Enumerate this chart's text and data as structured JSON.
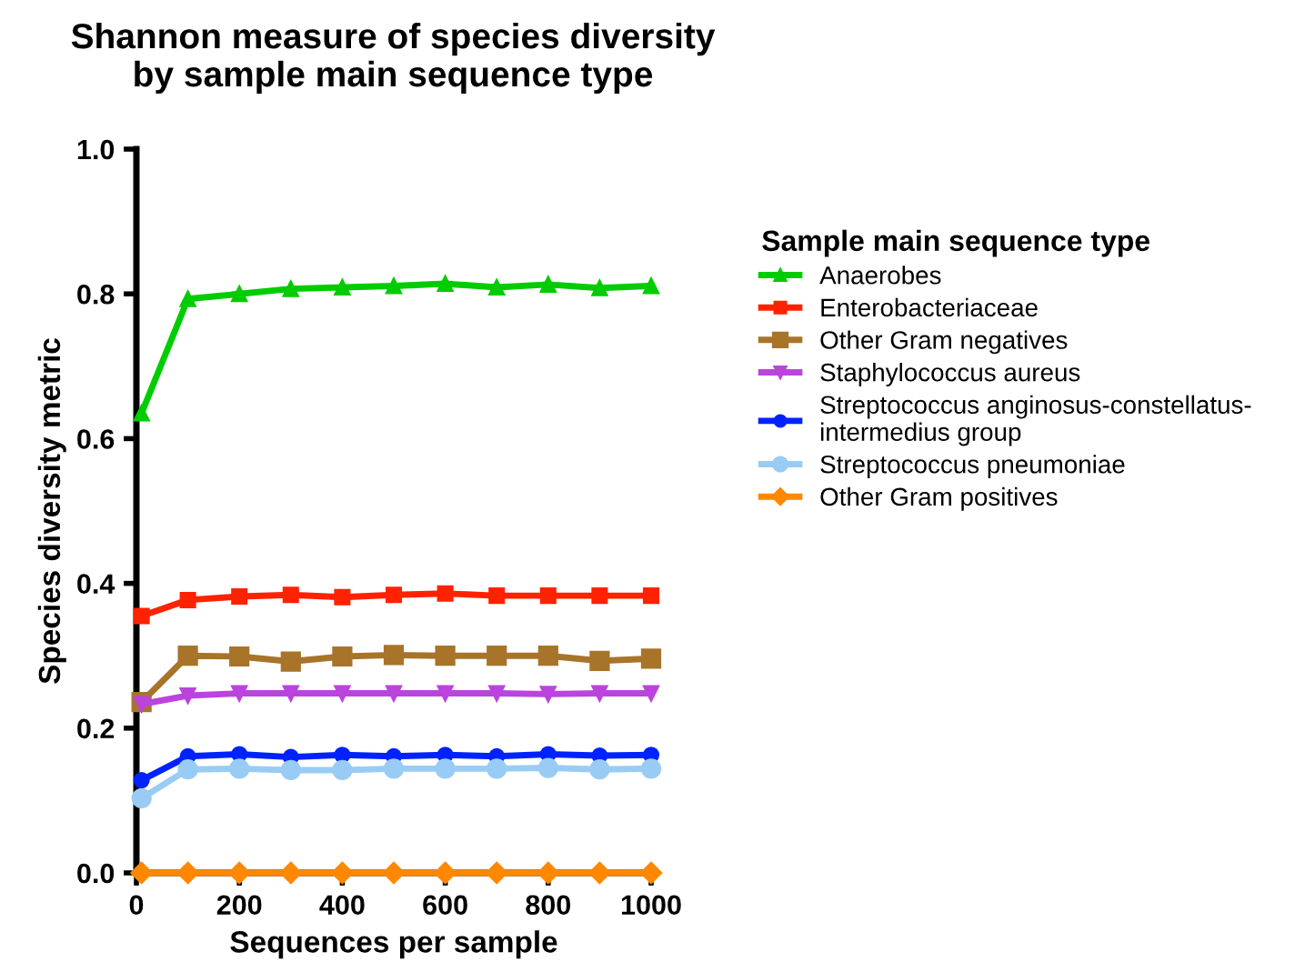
{
  "chart_data": {
    "type": "line",
    "title": "Shannon measure of species diversity\nby sample main sequence type",
    "xlabel": "Sequences per sample",
    "ylabel": "Species diversity metric",
    "legend_title": "Sample main sequence type",
    "x": [
      10,
      100,
      200,
      300,
      400,
      500,
      600,
      700,
      800,
      900,
      1000
    ],
    "series": [
      {
        "name": "Anaerobes",
        "color": "#00cc00",
        "marker": "triangle",
        "values": [
          0.635,
          0.793,
          0.8,
          0.807,
          0.809,
          0.811,
          0.814,
          0.809,
          0.813,
          0.808,
          0.811
        ]
      },
      {
        "name": "Enterobacteriaceae",
        "color": "#ff2200",
        "marker": "square",
        "values": [
          0.355,
          0.377,
          0.382,
          0.384,
          0.381,
          0.384,
          0.386,
          0.383,
          0.383,
          0.383,
          0.383
        ]
      },
      {
        "name": "Other Gram negatives",
        "color": "#a8742a",
        "marker": "square",
        "values": [
          0.236,
          0.3,
          0.299,
          0.292,
          0.299,
          0.301,
          0.3,
          0.3,
          0.3,
          0.293,
          0.296
        ]
      },
      {
        "name": "Staphylococcus aureus",
        "color": "#bb44dd",
        "marker": "triangle_down",
        "values": [
          0.233,
          0.245,
          0.248,
          0.248,
          0.248,
          0.248,
          0.248,
          0.248,
          0.247,
          0.248,
          0.248
        ]
      },
      {
        "name": "Streptococcus anginosus-constellatus-intermedius group",
        "color": "#0022ff",
        "marker": "circle",
        "values": [
          0.128,
          0.161,
          0.164,
          0.16,
          0.163,
          0.161,
          0.163,
          0.161,
          0.164,
          0.162,
          0.163
        ]
      },
      {
        "name": "Streptococcus pneumoniae",
        "color": "#99ccf5",
        "marker": "circle",
        "values": [
          0.103,
          0.143,
          0.144,
          0.142,
          0.142,
          0.144,
          0.144,
          0.144,
          0.145,
          0.143,
          0.144
        ]
      },
      {
        "name": "Other Gram positives",
        "color": "#ff8800",
        "marker": "diamond",
        "values": [
          0,
          0,
          0,
          0,
          0,
          0,
          0,
          0,
          0,
          0,
          0
        ]
      }
    ],
    "xlim": [
      0,
      1000
    ],
    "xticks": [
      0,
      200,
      400,
      600,
      800,
      1000
    ],
    "ylim": [
      0,
      1
    ],
    "yticks": [
      {
        "value": 0,
        "label": "0.0"
      },
      {
        "value": 0.2,
        "label": "0.2"
      },
      {
        "value": 0.4,
        "label": "0.4"
      },
      {
        "value": 0.6,
        "label": "0.6"
      },
      {
        "value": 0.8,
        "label": "0.8"
      },
      {
        "value": 1,
        "label": "1.0"
      }
    ],
    "grid": false,
    "legend": "right",
    "line_style": "solid"
  }
}
